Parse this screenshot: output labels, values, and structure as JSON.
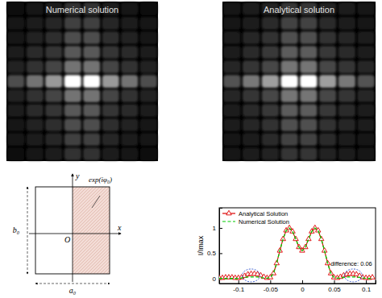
{
  "chart_data": [
    {
      "type": "heatmap",
      "title": "Numerical solution",
      "zlim": [
        0,
        1
      ],
      "cells": [
        [
          0.06,
          0.09,
          0.12,
          0.2,
          0.2,
          0.12,
          0.09,
          0.06
        ],
        [
          0.08,
          0.11,
          0.15,
          0.25,
          0.25,
          0.15,
          0.11,
          0.08
        ],
        [
          0.09,
          0.14,
          0.18,
          0.3,
          0.3,
          0.18,
          0.14,
          0.09
        ],
        [
          0.11,
          0.16,
          0.21,
          0.35,
          0.35,
          0.21,
          0.16,
          0.11
        ],
        [
          0.14,
          0.2,
          0.27,
          0.45,
          0.45,
          0.27,
          0.2,
          0.14
        ],
        [
          0.3,
          0.45,
          0.6,
          1,
          1,
          0.6,
          0.45,
          0.3
        ],
        [
          0.14,
          0.2,
          0.27,
          0.45,
          0.45,
          0.27,
          0.2,
          0.14
        ],
        [
          0.11,
          0.16,
          0.21,
          0.35,
          0.35,
          0.21,
          0.16,
          0.11
        ],
        [
          0.09,
          0.14,
          0.18,
          0.3,
          0.3,
          0.18,
          0.14,
          0.09
        ],
        [
          0.08,
          0.11,
          0.15,
          0.25,
          0.25,
          0.15,
          0.11,
          0.08
        ],
        [
          0.06,
          0.09,
          0.12,
          0.2,
          0.2,
          0.12,
          0.09,
          0.06
        ]
      ]
    },
    {
      "type": "heatmap",
      "title": "Analytical solution",
      "zlim": [
        0,
        1
      ],
      "cells": [
        [
          0.07,
          0.1,
          0.13,
          0.21,
          0.21,
          0.13,
          0.1,
          0.07
        ],
        [
          0.09,
          0.12,
          0.16,
          0.26,
          0.26,
          0.16,
          0.12,
          0.09
        ],
        [
          0.1,
          0.15,
          0.19,
          0.31,
          0.31,
          0.19,
          0.15,
          0.1
        ],
        [
          0.12,
          0.17,
          0.22,
          0.36,
          0.36,
          0.22,
          0.17,
          0.12
        ],
        [
          0.15,
          0.21,
          0.28,
          0.46,
          0.46,
          0.28,
          0.21,
          0.15
        ],
        [
          0.32,
          0.47,
          0.62,
          1,
          1,
          0.62,
          0.47,
          0.32
        ],
        [
          0.15,
          0.21,
          0.28,
          0.46,
          0.46,
          0.28,
          0.21,
          0.15
        ],
        [
          0.12,
          0.17,
          0.22,
          0.36,
          0.36,
          0.22,
          0.17,
          0.12
        ],
        [
          0.1,
          0.15,
          0.19,
          0.31,
          0.31,
          0.19,
          0.15,
          0.1
        ],
        [
          0.09,
          0.12,
          0.16,
          0.26,
          0.26,
          0.16,
          0.12,
          0.09
        ],
        [
          0.07,
          0.1,
          0.13,
          0.21,
          0.21,
          0.13,
          0.1,
          0.07
        ]
      ]
    },
    {
      "type": "line",
      "y_label": "I/Imax",
      "legend": "upper left",
      "grid": false,
      "xlim": [
        -0.13,
        0.115
      ],
      "xticks": [
        -0.1,
        -0.05,
        0,
        0.05,
        0.1
      ],
      "ylim": [
        -0.1,
        1.4
      ],
      "yticks": [
        0,
        0.5,
        1
      ],
      "x": [
        -0.13,
        -0.125,
        -0.12,
        -0.115,
        -0.11,
        -0.105,
        -0.1,
        -0.095,
        -0.09,
        -0.085,
        -0.08,
        -0.075,
        -0.07,
        -0.065,
        -0.06,
        -0.055,
        -0.05,
        -0.045,
        -0.04,
        -0.035,
        -0.03,
        -0.025,
        -0.02,
        -0.015,
        -0.01,
        -0.005,
        0,
        0.005,
        0.01,
        0.015,
        0.02,
        0.025,
        0.03,
        0.035,
        0.04,
        0.045,
        0.05,
        0.055,
        0.06,
        0.065,
        0.07,
        0.075,
        0.08,
        0.085,
        0.09,
        0.095,
        0.1,
        0.105,
        0.11
      ],
      "series": [
        {
          "name": "Analytical Solution",
          "color": "#dd0000",
          "marker": "triangle",
          "line_style": "solid",
          "values": [
            0.01,
            0.01,
            0.02,
            0.02,
            0.02,
            0.01,
            0.01,
            0.02,
            0.05,
            0.08,
            0.09,
            0.09,
            0.08,
            0.06,
            0.03,
            0.01,
            0.02,
            0.1,
            0.3,
            0.55,
            0.78,
            0.95,
            1.0,
            0.93,
            0.78,
            0.62,
            0.55,
            0.62,
            0.78,
            0.93,
            1.0,
            0.95,
            0.78,
            0.55,
            0.3,
            0.1,
            0.02,
            0.01,
            0.03,
            0.06,
            0.08,
            0.09,
            0.09,
            0.08,
            0.05,
            0.02,
            0.01,
            0.01,
            0.02
          ]
        },
        {
          "name": "Numerical Solution",
          "color": "#00cc00",
          "marker": "none",
          "line_style": "dashed",
          "values": [
            0,
            0,
            0,
            0,
            0,
            0,
            0,
            0.01,
            0.02,
            0.03,
            0.03,
            0.03,
            0.03,
            0.02,
            0.01,
            0.005,
            0.02,
            0.1,
            0.3,
            0.55,
            0.78,
            0.95,
            1.0,
            0.93,
            0.78,
            0.62,
            0.55,
            0.62,
            0.78,
            0.93,
            1.0,
            0.95,
            0.78,
            0.55,
            0.3,
            0.1,
            0.02,
            0.005,
            0.01,
            0.02,
            0.03,
            0.03,
            0.03,
            0.03,
            0.02,
            0.01,
            0,
            0,
            0
          ]
        }
      ],
      "highlights": [
        {
          "x": -0.08,
          "y": 0.06
        },
        {
          "x": 0.08,
          "y": 0.06
        }
      ],
      "annotation": "difference: 0.06"
    }
  ],
  "diagram": {
    "axis_x": "x",
    "axis_y": "y",
    "origin": "O",
    "width_label": "a₀",
    "height_label": "b₀",
    "phase_label": "exp(iφ₀)"
  }
}
